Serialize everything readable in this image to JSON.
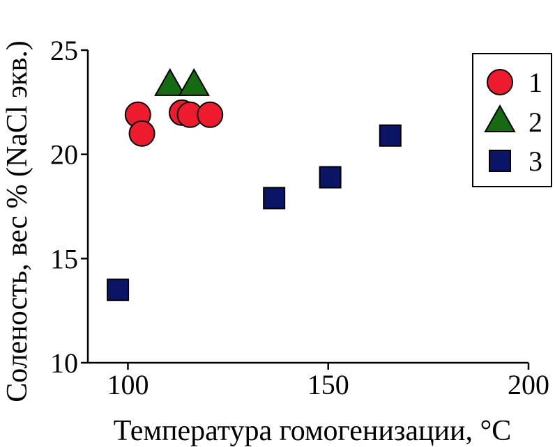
{
  "chart_data": {
    "type": "scatter",
    "xlabel": "Температура гомогенизации, °C",
    "ylabel": "Соленость, вес % (NaCl экв.)",
    "xlim": [
      90,
      200
    ],
    "ylim": [
      10,
      25
    ],
    "x_ticks": [
      100,
      150,
      200
    ],
    "y_ticks": [
      10,
      15,
      20,
      25
    ],
    "grid": false,
    "legend_position": "top-right",
    "series": [
      {
        "name": "1",
        "marker": "circle",
        "color": "#ee1b2e",
        "points": [
          {
            "x": 102.5,
            "y": 21.9
          },
          {
            "x": 103.5,
            "y": 21.0
          },
          {
            "x": 113.5,
            "y": 22.0
          },
          {
            "x": 115.5,
            "y": 21.9
          },
          {
            "x": 120.5,
            "y": 21.9
          }
        ]
      },
      {
        "name": "2",
        "marker": "triangle",
        "color": "#156a12",
        "points": [
          {
            "x": 110.5,
            "y": 23.3
          },
          {
            "x": 116.5,
            "y": 23.3
          }
        ]
      },
      {
        "name": "3",
        "marker": "square",
        "color": "#0b1566",
        "points": [
          {
            "x": 97.5,
            "y": 13.5
          },
          {
            "x": 136.5,
            "y": 17.9
          },
          {
            "x": 150.5,
            "y": 18.9
          },
          {
            "x": 165.5,
            "y": 20.9
          }
        ]
      }
    ]
  }
}
